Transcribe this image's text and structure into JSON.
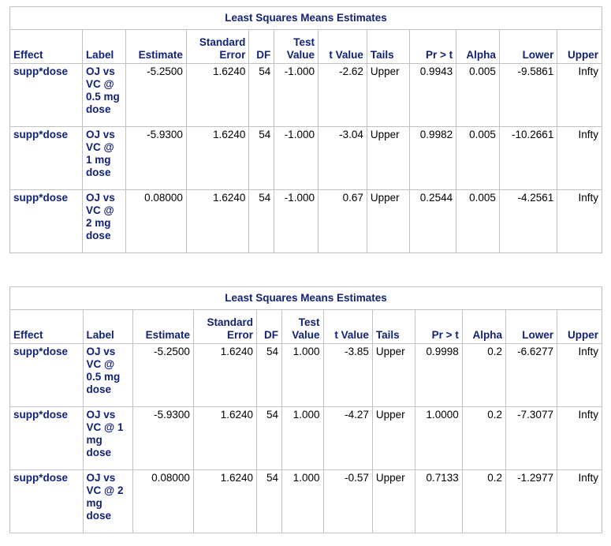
{
  "tables": [
    {
      "title": "Least Squares Means Estimates",
      "columns": [
        "Effect",
        "Label",
        "Estimate",
        "Standard|Error",
        "DF",
        "Test|Value",
        "t Value",
        "Tails",
        "Pr > t",
        "Alpha",
        "Lower",
        "Upper"
      ],
      "rows": [
        {
          "effect": "supp*dose",
          "label": "OJ vs VC @ 0.5 mg dose",
          "estimate": "-5.2500",
          "stderr": "1.6240",
          "df": "54",
          "testvalue": "-1.000",
          "tvalue": "-2.62",
          "tails": "Upper",
          "prt": "0.9943",
          "alpha": "0.005",
          "lower": "-9.5861",
          "upper": "Infty"
        },
        {
          "effect": "supp*dose",
          "label": "OJ vs VC @ 1 mg dose",
          "estimate": "-5.9300",
          "stderr": "1.6240",
          "df": "54",
          "testvalue": "-1.000",
          "tvalue": "-3.04",
          "tails": "Upper",
          "prt": "0.9982",
          "alpha": "0.005",
          "lower": "-10.2661",
          "upper": "Infty"
        },
        {
          "effect": "supp*dose",
          "label": "OJ vs VC @ 2 mg dose",
          "estimate": "0.08000",
          "stderr": "1.6240",
          "df": "54",
          "testvalue": "-1.000",
          "tvalue": "0.67",
          "tails": "Upper",
          "prt": "0.2544",
          "alpha": "0.005",
          "lower": "-4.2561",
          "upper": "Infty"
        }
      ]
    },
    {
      "title": "Least Squares Means Estimates",
      "columns": [
        "Effect",
        "Label",
        "Estimate",
        "Standard|Error",
        "DF",
        "Test|Value",
        "t Value",
        "Tails",
        "Pr > t",
        "Alpha",
        "Lower",
        "Upper"
      ],
      "rows": [
        {
          "effect": "supp*dose",
          "label": "OJ vs VC @ 0.5 mg dose",
          "estimate": "-5.2500",
          "stderr": "1.6240",
          "df": "54",
          "testvalue": "1.000",
          "tvalue": "-3.85",
          "tails": "Upper",
          "prt": "0.9998",
          "alpha": "0.2",
          "lower": "-6.6277",
          "upper": "Infty"
        },
        {
          "effect": "supp*dose",
          "label": "OJ vs VC @ 1 mg dose",
          "estimate": "-5.9300",
          "stderr": "1.6240",
          "df": "54",
          "testvalue": "1.000",
          "tvalue": "-4.27",
          "tails": "Upper",
          "prt": "1.0000",
          "alpha": "0.2",
          "lower": "-7.3077",
          "upper": "Infty"
        },
        {
          "effect": "supp*dose",
          "label": "OJ vs VC @ 2 mg dose",
          "estimate": "0.08000",
          "stderr": "1.6240",
          "df": "54",
          "testvalue": "1.000",
          "tvalue": "-0.57",
          "tails": "Upper",
          "prt": "0.7133",
          "alpha": "0.2",
          "lower": "-1.2977",
          "upper": "Infty"
        }
      ]
    }
  ]
}
